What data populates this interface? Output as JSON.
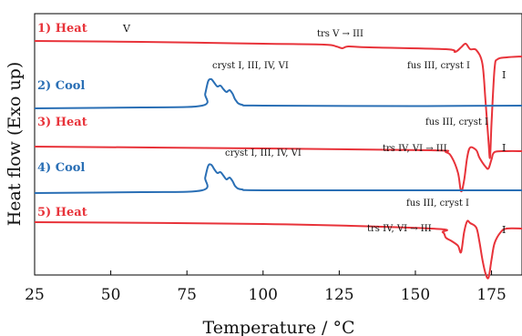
{
  "chart_data": {
    "type": "line",
    "xlabel": "Temperature / °C",
    "ylabel": "Heat flow (Exo up)",
    "xlim": [
      25,
      185
    ],
    "xticks": [
      25,
      50,
      75,
      100,
      125,
      150,
      175
    ],
    "tick_labels": [
      "25",
      "50",
      "75",
      "100",
      "125",
      "150",
      "175"
    ],
    "colors": {
      "heat": "#e8333a",
      "cool": "#2a6fb5"
    },
    "series": [
      {
        "name": "1) Heat",
        "color": "#e8333a",
        "x": [
          25,
          60,
          100,
          120,
          124,
          126,
          128,
          135,
          160,
          163,
          165,
          166.5,
          168,
          170,
          172,
          173,
          174,
          174.5,
          175,
          176,
          177,
          180,
          185
        ],
        "y": [
          30,
          31,
          33,
          34,
          36,
          38,
          36,
          37,
          39,
          42,
          37,
          33,
          39,
          40,
          55,
          95,
          140,
          158,
          120,
          60,
          50,
          48,
          47
        ]
      },
      {
        "name": "2) Cool",
        "color": "#2a6fb5",
        "x": [
          25,
          60,
          80,
          81,
          82,
          83,
          84,
          85,
          86,
          87,
          88,
          89,
          90,
          91,
          93,
          100,
          150,
          185
        ],
        "y": [
          104,
          103,
          101,
          88,
          74,
          72,
          76,
          80,
          79,
          83,
          86,
          84,
          88,
          95,
          100,
          101,
          101.5,
          101
        ]
      },
      {
        "name": "3) Heat",
        "color": "#e8333a",
        "x": [
          25,
          100,
          155,
          160,
          162,
          164,
          165,
          166,
          167,
          168,
          170,
          171,
          173,
          174,
          175,
          176,
          180,
          185
        ],
        "y": [
          146,
          148,
          150,
          152,
          158,
          175,
          195,
          183,
          158,
          147,
          150,
          158,
          168,
          170,
          160,
          152,
          151,
          151
        ]
      },
      {
        "name": "4) Cool",
        "color": "#2a6fb5",
        "x": [
          25,
          60,
          80,
          81,
          82,
          83,
          84,
          85,
          86,
          87,
          88,
          89,
          90,
          91,
          93,
          100,
          150,
          185
        ],
        "y": [
          197,
          196,
          194,
          180,
          167,
          166,
          171,
          175,
          174,
          178,
          182,
          180,
          184,
          190,
          193,
          194,
          194,
          194
        ]
      },
      {
        "name": "5) Heat",
        "color": "#e8333a",
        "x": [
          25,
          100,
          155,
          159,
          160,
          162,
          164,
          165,
          166,
          167,
          168,
          170,
          171,
          172,
          173,
          174,
          175,
          176,
          178,
          180,
          185
        ],
        "y": [
          229,
          231,
          236,
          240,
          246,
          250,
          255,
          262,
          240,
          228,
          230,
          235,
          250,
          270,
          285,
          290,
          270,
          252,
          240,
          236,
          236
        ]
      }
    ],
    "series_labels": [
      {
        "text": "1) Heat",
        "color": "#e8333a"
      },
      {
        "text": "2) Cool",
        "color": "#2a6fb5"
      },
      {
        "text": "3) Heat",
        "color": "#e8333a"
      },
      {
        "text": "4) Cool",
        "color": "#2a6fb5"
      },
      {
        "text": "5) Heat",
        "color": "#e8333a"
      }
    ],
    "annotations": [
      {
        "text": "V"
      },
      {
        "text": "trs V → III"
      },
      {
        "text": "cryst I, III, IV, VI"
      },
      {
        "text": "fus III, cryst I"
      },
      {
        "text": "I"
      },
      {
        "text": "fus III, cryst I"
      },
      {
        "text": "trs IV, VI → III"
      },
      {
        "text": "I"
      },
      {
        "text": "cryst I, III, IV, VI"
      },
      {
        "text": "fus III, cryst I"
      },
      {
        "text": "trs IV, VI → III"
      },
      {
        "text": "I"
      }
    ]
  }
}
